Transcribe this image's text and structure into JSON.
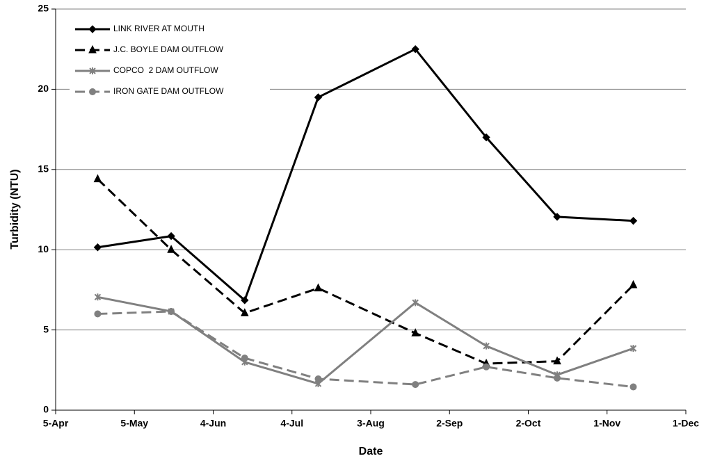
{
  "chart_data": {
    "type": "line",
    "x_label": "Date",
    "y_label": "Turbidity (NTU)",
    "x": [
      16,
      44,
      72,
      100,
      137,
      164,
      191,
      220
    ],
    "xlim": [
      0,
      240
    ],
    "xticks": [
      {
        "value": 0,
        "label": "5-Apr"
      },
      {
        "value": 30,
        "label": "5-May"
      },
      {
        "value": 60,
        "label": "4-Jun"
      },
      {
        "value": 90,
        "label": "4-Jul"
      },
      {
        "value": 120,
        "label": "3-Aug"
      },
      {
        "value": 150,
        "label": "2-Sep"
      },
      {
        "value": 180,
        "label": "2-Oct"
      },
      {
        "value": 210,
        "label": "1-Nov"
      },
      {
        "value": 240,
        "label": "1-Dec"
      }
    ],
    "ylim": [
      0,
      25
    ],
    "yticks": [
      0,
      5,
      10,
      15,
      20,
      25
    ],
    "grid": true,
    "legend": "top-left",
    "series": [
      {
        "name": "LINK RIVER AT MOUTH",
        "color": "#000000",
        "marker": "diamond",
        "dash": false,
        "values": [
          10.15,
          10.85,
          6.85,
          19.5,
          22.5,
          17.0,
          12.05,
          11.8
        ]
      },
      {
        "name": "J.C. BOYLE DAM OUTFLOW",
        "color": "#000000",
        "marker": "triangle",
        "dash": true,
        "values": [
          14.4,
          10.0,
          6.05,
          7.6,
          4.8,
          2.9,
          3.05,
          7.8
        ]
      },
      {
        "name": "COPCO  2 DAM OUTFLOW",
        "color": "#808080",
        "marker": "star",
        "dash": false,
        "values": [
          7.05,
          6.15,
          3.0,
          1.65,
          6.7,
          4.0,
          2.2,
          3.85
        ]
      },
      {
        "name": "IRON GATE DAM OUTFLOW",
        "color": "#808080",
        "marker": "circle",
        "dash": true,
        "values": [
          6.0,
          6.15,
          3.25,
          1.95,
          1.6,
          2.7,
          2.0,
          1.45
        ]
      }
    ]
  }
}
